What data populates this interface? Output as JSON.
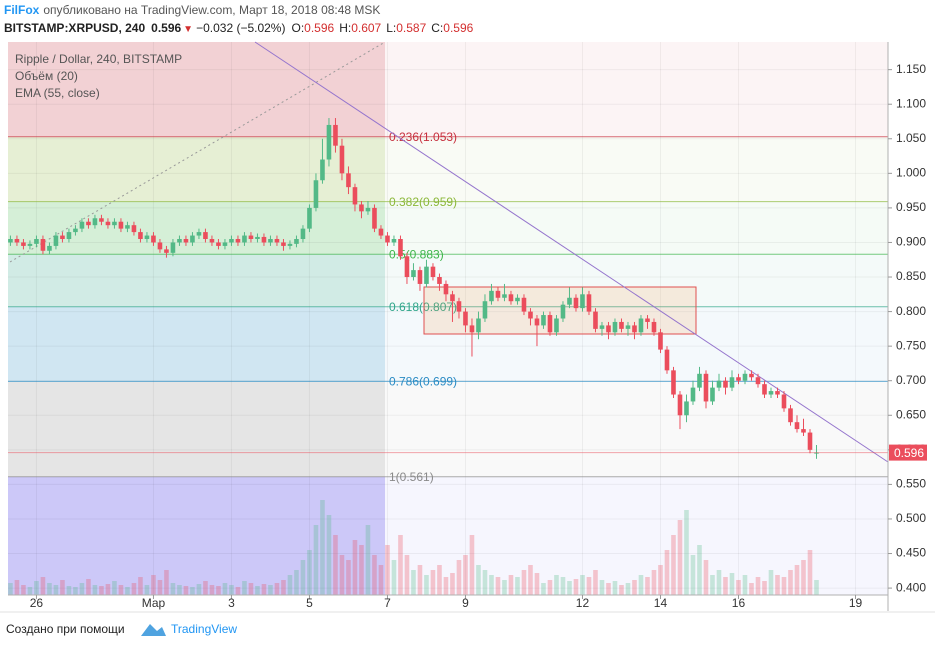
{
  "header": {
    "author": "FilFox",
    "published": "опубликовано на TradingView.com, Март 18, 2018 08:48 MSK",
    "symbol": "BITSTAMP:XRPUSD, 240",
    "last": "0.596",
    "direction": "▼",
    "change": "−0.032 (−5.02%)",
    "ohlc": [
      {
        "label": "O:",
        "value": "0.596"
      },
      {
        "label": "H:",
        "value": "0.607"
      },
      {
        "label": "L:",
        "value": "0.587"
      },
      {
        "label": "C:",
        "value": "0.596"
      }
    ]
  },
  "chart_data": {
    "type": "candlestick",
    "legend": [
      "Ripple / Dollar, 240, BITSTAMP",
      "Объём (20)",
      "EMA (55, close)"
    ],
    "up_color": "#53b987",
    "down_color": "#eb4d5c",
    "grid": true,
    "xlim": [
      -17.5,
      524
    ],
    "ylim": [
      0.39,
      1.19
    ],
    "xticks": [
      {
        "value": 0,
        "label": "26"
      },
      {
        "value": 72,
        "label": "Мар"
      },
      {
        "value": 120,
        "label": "3"
      },
      {
        "value": 168,
        "label": "5"
      },
      {
        "value": 216,
        "label": "7"
      },
      {
        "value": 264,
        "label": "9"
      },
      {
        "value": 336,
        "label": "12"
      },
      {
        "value": 384,
        "label": "14"
      },
      {
        "value": 432,
        "label": "16"
      },
      {
        "value": 504,
        "label": "19"
      }
    ],
    "yticks": [
      {
        "value": 0.4,
        "label": "0.400"
      },
      {
        "value": 0.45,
        "label": "0.450"
      },
      {
        "value": 0.5,
        "label": "0.500"
      },
      {
        "value": 0.55,
        "label": "0.550"
      },
      {
        "value": 0.6,
        "label": "0.600"
      },
      {
        "value": 0.65,
        "label": "0.650"
      },
      {
        "value": 0.7,
        "label": "0.700"
      },
      {
        "value": 0.75,
        "label": "0.750"
      },
      {
        "value": 0.8,
        "label": "0.800"
      },
      {
        "value": 0.85,
        "label": "0.850"
      },
      {
        "value": 0.9,
        "label": "0.900"
      },
      {
        "value": 0.95,
        "label": "0.950"
      },
      {
        "value": 1.0,
        "label": "1.000"
      },
      {
        "value": 1.05,
        "label": "1.050"
      },
      {
        "value": 1.1,
        "label": "1.100"
      },
      {
        "value": 1.15,
        "label": "1.150"
      }
    ],
    "fib_levels": [
      {
        "label": "0.236(1.053)",
        "value": 1.053,
        "color": "#c62f3d"
      },
      {
        "label": "0.382(0.959)",
        "value": 0.959,
        "color": "#8cb83a"
      },
      {
        "label": "0.5(0.883)",
        "value": 0.883,
        "color": "#3fb54b"
      },
      {
        "label": "0.618(0.807)",
        "value": 0.807,
        "color": "#2fa58a"
      },
      {
        "label": "0.786(0.699)",
        "value": 0.699,
        "color": "#2a8bc4"
      },
      {
        "label": "1(0.561)",
        "value": 0.561,
        "color": "#8a8a8a"
      }
    ],
    "x": [
      -16,
      -12,
      -8,
      -4,
      0,
      4,
      8,
      12,
      16,
      20,
      24,
      28,
      32,
      36,
      40,
      44,
      48,
      52,
      56,
      60,
      64,
      68,
      72,
      76,
      80,
      84,
      88,
      92,
      96,
      100,
      104,
      108,
      112,
      116,
      120,
      124,
      128,
      132,
      136,
      140,
      144,
      148,
      152,
      156,
      160,
      164,
      168,
      172,
      176,
      180,
      184,
      188,
      192,
      196,
      200,
      204,
      208,
      212,
      216,
      220,
      224,
      228,
      232,
      236,
      240,
      244,
      248,
      252,
      256,
      260,
      264,
      268,
      272,
      276,
      280,
      284,
      288,
      292,
      296,
      300,
      304,
      308,
      312,
      316,
      320,
      324,
      328,
      332,
      336,
      340,
      344,
      348,
      352,
      356,
      360,
      364,
      368,
      372,
      376,
      380,
      384,
      388,
      392,
      396,
      400,
      404,
      408,
      412,
      416,
      420,
      424,
      428,
      432,
      436,
      440,
      444,
      448,
      452,
      456,
      460,
      464,
      468,
      472,
      476,
      480
    ],
    "open": [
      0.9,
      0.905,
      0.9,
      0.895,
      0.898,
      0.905,
      0.888,
      0.895,
      0.91,
      0.905,
      0.915,
      0.92,
      0.93,
      0.925,
      0.935,
      0.93,
      0.925,
      0.93,
      0.92,
      0.925,
      0.915,
      0.905,
      0.91,
      0.9,
      0.89,
      0.885,
      0.9,
      0.905,
      0.9,
      0.91,
      0.915,
      0.905,
      0.9,
      0.895,
      0.9,
      0.905,
      0.9,
      0.91,
      0.905,
      0.908,
      0.9,
      0.905,
      0.9,
      0.895,
      0.898,
      0.905,
      0.92,
      0.95,
      0.99,
      1.02,
      1.07,
      1.04,
      1.0,
      0.98,
      0.955,
      0.945,
      0.95,
      0.92,
      0.91,
      0.9,
      0.905,
      0.88,
      0.85,
      0.86,
      0.84,
      0.865,
      0.85,
      0.84,
      0.825,
      0.815,
      0.8,
      0.78,
      0.77,
      0.79,
      0.815,
      0.83,
      0.82,
      0.825,
      0.815,
      0.82,
      0.8,
      0.79,
      0.78,
      0.795,
      0.77,
      0.79,
      0.81,
      0.82,
      0.805,
      0.825,
      0.8,
      0.775,
      0.78,
      0.77,
      0.785,
      0.775,
      0.78,
      0.77,
      0.79,
      0.785,
      0.77,
      0.745,
      0.715,
      0.68,
      0.65,
      0.67,
      0.69,
      0.71,
      0.67,
      0.69,
      0.7,
      0.69,
      0.705,
      0.7,
      0.71,
      0.705,
      0.695,
      0.68,
      0.685,
      0.68,
      0.66,
      0.64,
      0.63,
      0.625,
      0.596
    ],
    "high": [
      0.91,
      0.91,
      0.905,
      0.903,
      0.91,
      0.91,
      0.9,
      0.915,
      0.915,
      0.92,
      0.925,
      0.935,
      0.935,
      0.94,
      0.94,
      0.935,
      0.935,
      0.935,
      0.93,
      0.93,
      0.92,
      0.915,
      0.915,
      0.905,
      0.895,
      0.905,
      0.91,
      0.91,
      0.915,
      0.92,
      0.92,
      0.91,
      0.905,
      0.905,
      0.91,
      0.91,
      0.915,
      0.915,
      0.913,
      0.913,
      0.91,
      0.91,
      0.905,
      0.903,
      0.91,
      0.925,
      0.955,
      1.0,
      1.05,
      1.08,
      1.08,
      1.05,
      1.01,
      0.985,
      0.96,
      0.96,
      0.955,
      0.925,
      0.915,
      0.91,
      0.91,
      0.885,
      0.87,
      0.865,
      0.875,
      0.87,
      0.855,
      0.845,
      0.83,
      0.82,
      0.805,
      0.79,
      0.8,
      0.825,
      0.84,
      0.835,
      0.84,
      0.83,
      0.825,
      0.825,
      0.805,
      0.795,
      0.8,
      0.8,
      0.795,
      0.815,
      0.835,
      0.825,
      0.835,
      0.83,
      0.805,
      0.785,
      0.785,
      0.79,
      0.79,
      0.785,
      0.785,
      0.795,
      0.795,
      0.79,
      0.775,
      0.75,
      0.72,
      0.685,
      0.68,
      0.7,
      0.72,
      0.715,
      0.7,
      0.71,
      0.705,
      0.715,
      0.71,
      0.715,
      0.715,
      0.71,
      0.7,
      0.69,
      0.69,
      0.685,
      0.665,
      0.65,
      0.645,
      0.63,
      0.607
    ],
    "low": [
      0.895,
      0.895,
      0.89,
      0.89,
      0.893,
      0.883,
      0.883,
      0.89,
      0.9,
      0.9,
      0.91,
      0.915,
      0.92,
      0.92,
      0.925,
      0.92,
      0.92,
      0.915,
      0.915,
      0.91,
      0.9,
      0.9,
      0.895,
      0.885,
      0.878,
      0.88,
      0.895,
      0.895,
      0.895,
      0.905,
      0.9,
      0.895,
      0.89,
      0.89,
      0.895,
      0.895,
      0.895,
      0.9,
      0.9,
      0.895,
      0.895,
      0.895,
      0.888,
      0.89,
      0.893,
      0.9,
      0.915,
      0.945,
      0.985,
      1.01,
      1.03,
      0.99,
      0.97,
      0.945,
      0.935,
      0.94,
      0.915,
      0.905,
      0.895,
      0.895,
      0.875,
      0.84,
      0.845,
      0.83,
      0.835,
      0.845,
      0.83,
      0.815,
      0.785,
      0.79,
      0.77,
      0.735,
      0.76,
      0.785,
      0.81,
      0.815,
      0.815,
      0.81,
      0.81,
      0.795,
      0.78,
      0.75,
      0.775,
      0.765,
      0.765,
      0.785,
      0.805,
      0.8,
      0.8,
      0.795,
      0.77,
      0.765,
      0.76,
      0.765,
      0.77,
      0.765,
      0.76,
      0.765,
      0.775,
      0.765,
      0.74,
      0.71,
      0.675,
      0.63,
      0.64,
      0.665,
      0.685,
      0.66,
      0.665,
      0.685,
      0.68,
      0.685,
      0.695,
      0.695,
      0.7,
      0.69,
      0.675,
      0.675,
      0.675,
      0.655,
      0.635,
      0.625,
      0.62,
      0.595,
      0.587
    ],
    "close": [
      0.905,
      0.9,
      0.895,
      0.898,
      0.905,
      0.888,
      0.895,
      0.91,
      0.905,
      0.915,
      0.92,
      0.93,
      0.925,
      0.935,
      0.93,
      0.925,
      0.93,
      0.92,
      0.925,
      0.915,
      0.905,
      0.91,
      0.9,
      0.89,
      0.885,
      0.9,
      0.905,
      0.9,
      0.91,
      0.915,
      0.905,
      0.9,
      0.895,
      0.9,
      0.905,
      0.9,
      0.91,
      0.905,
      0.908,
      0.9,
      0.905,
      0.9,
      0.895,
      0.898,
      0.905,
      0.92,
      0.95,
      0.99,
      1.02,
      1.07,
      1.04,
      1.0,
      0.98,
      0.955,
      0.945,
      0.95,
      0.92,
      0.91,
      0.9,
      0.905,
      0.88,
      0.85,
      0.86,
      0.84,
      0.865,
      0.85,
      0.84,
      0.825,
      0.815,
      0.8,
      0.78,
      0.77,
      0.79,
      0.815,
      0.83,
      0.82,
      0.825,
      0.815,
      0.82,
      0.8,
      0.79,
      0.78,
      0.795,
      0.77,
      0.79,
      0.81,
      0.82,
      0.805,
      0.825,
      0.8,
      0.775,
      0.78,
      0.77,
      0.785,
      0.775,
      0.78,
      0.77,
      0.79,
      0.785,
      0.77,
      0.745,
      0.715,
      0.68,
      0.65,
      0.67,
      0.69,
      0.71,
      0.67,
      0.69,
      0.7,
      0.69,
      0.705,
      0.7,
      0.71,
      0.705,
      0.695,
      0.68,
      0.685,
      0.68,
      0.66,
      0.64,
      0.63,
      0.625,
      0.6,
      0.596
    ],
    "volume": [
      12,
      15,
      10,
      8,
      14,
      18,
      12,
      10,
      15,
      9,
      8,
      12,
      16,
      10,
      9,
      11,
      14,
      10,
      8,
      12,
      18,
      10,
      20,
      15,
      25,
      12,
      10,
      9,
      8,
      11,
      14,
      10,
      9,
      12,
      10,
      8,
      14,
      12,
      9,
      11,
      10,
      12,
      15,
      20,
      25,
      35,
      45,
      70,
      95,
      80,
      60,
      40,
      35,
      55,
      50,
      70,
      40,
      30,
      50,
      35,
      60,
      40,
      25,
      30,
      20,
      25,
      30,
      18,
      22,
      35,
      40,
      60,
      30,
      25,
      20,
      18,
      15,
      20,
      18,
      25,
      30,
      22,
      12,
      15,
      20,
      18,
      14,
      16,
      20,
      18,
      25,
      15,
      12,
      14,
      10,
      12,
      15,
      20,
      18,
      25,
      30,
      45,
      60,
      75,
      85,
      40,
      50,
      35,
      20,
      25,
      18,
      22,
      15,
      20,
      12,
      18,
      14,
      25,
      20,
      18,
      25,
      30,
      35,
      45,
      15
    ]
  },
  "footer": {
    "made_with": "Создано при помощи",
    "brand": "TradingView"
  }
}
